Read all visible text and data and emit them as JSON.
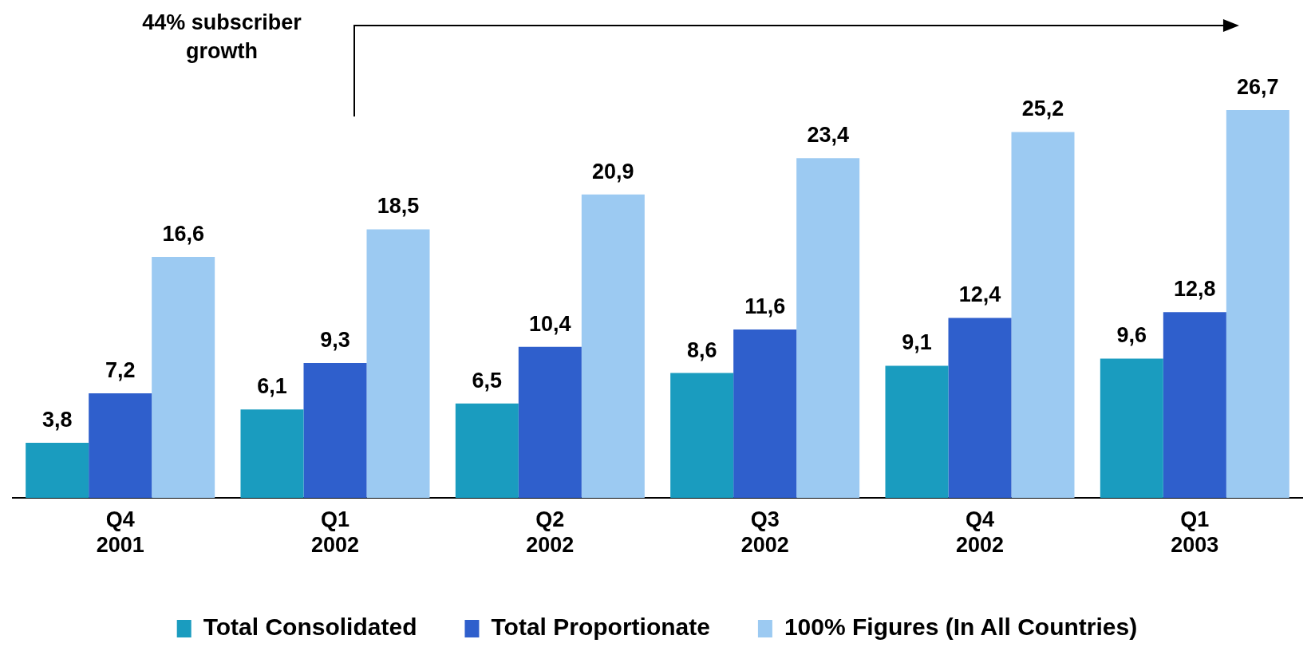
{
  "chart_data": {
    "type": "bar",
    "categories": [
      "Q4 2001",
      "Q1 2002",
      "Q2 2002",
      "Q3 2002",
      "Q4 2002",
      "Q1 2003"
    ],
    "series": [
      {
        "name": "Total Consolidated",
        "color": "#1a9cbf",
        "values": [
          3.8,
          6.1,
          6.5,
          8.6,
          9.1,
          9.6
        ],
        "value_labels": [
          "3,8",
          "6,1",
          "6,5",
          "8,6",
          "9,1",
          "9,6"
        ]
      },
      {
        "name": "Total Proportionate",
        "color": "#2f5fcc",
        "values": [
          7.2,
          9.3,
          10.4,
          11.6,
          12.4,
          12.8
        ],
        "value_labels": [
          "7,2",
          "9,3",
          "10,4",
          "11,6",
          "12,4",
          "12,8"
        ]
      },
      {
        "name": "100% Figures (In All Countries)",
        "color": "#9ccaf2",
        "values": [
          16.6,
          18.5,
          20.9,
          23.4,
          25.2,
          26.7
        ],
        "value_labels": [
          "16,6",
          "18,5",
          "20,9",
          "23,4",
          "25,2",
          "26,7"
        ]
      }
    ],
    "legend": "bottom",
    "grid": false,
    "annotations": [
      "44% subscriber growth"
    ]
  }
}
